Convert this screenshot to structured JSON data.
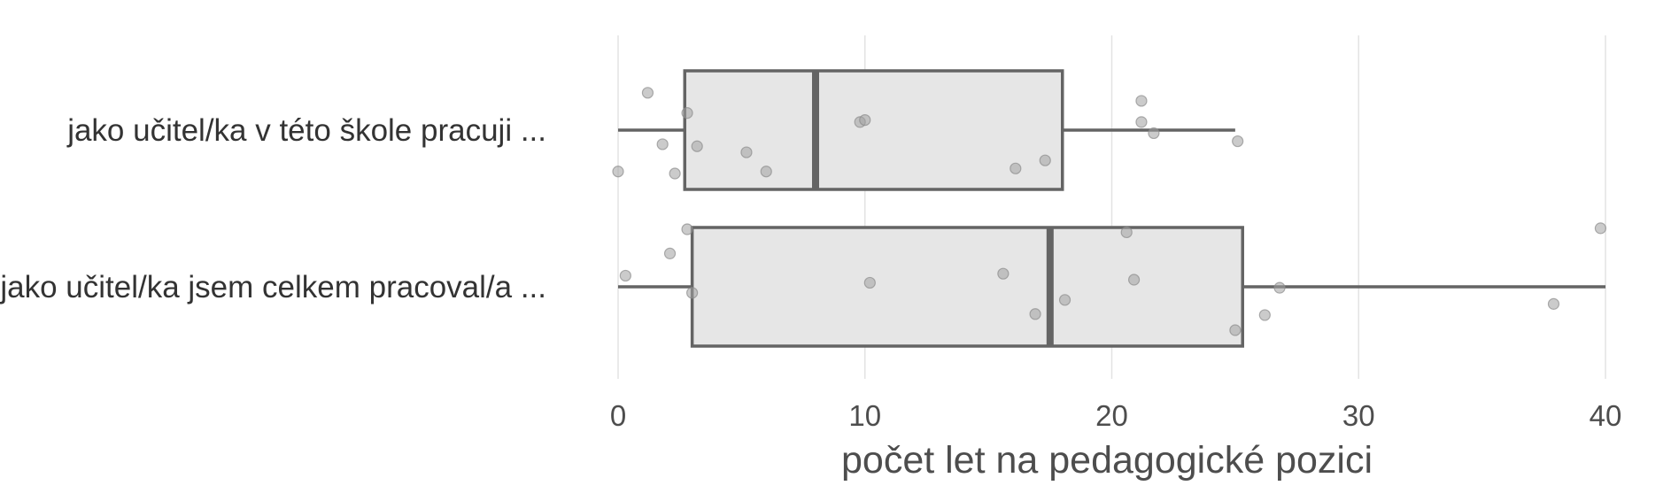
{
  "chart_data": {
    "type": "boxplot",
    "orientation": "horizontal",
    "xlabel": "počet let na pedagogické pozici",
    "xlim": [
      0,
      40
    ],
    "xticks": [
      0,
      10,
      20,
      30,
      40
    ],
    "grid": true,
    "box_fill": "#e6e6e6",
    "box_stroke": "#646464",
    "point_color": "#a0a0a0",
    "categories": [
      {
        "label": "jako učitel/ka v této škole pracuji ...",
        "whisker_low": 0,
        "q1": 2.7,
        "median": 8,
        "q3": 18,
        "whisker_high": 25,
        "points": [
          {
            "x": 1.2,
            "j": 0.74
          },
          {
            "x": 2.8,
            "j": 0.34
          },
          {
            "x": 1.8,
            "j": -0.28
          },
          {
            "x": 3.2,
            "j": -0.32
          },
          {
            "x": 5.2,
            "j": -0.44
          },
          {
            "x": 6.0,
            "j": -0.82
          },
          {
            "x": 2.3,
            "j": -0.86
          },
          {
            "x": 0.0,
            "j": -0.82
          },
          {
            "x": 9.8,
            "j": 0.16
          },
          {
            "x": 10.0,
            "j": 0.2
          },
          {
            "x": 16.1,
            "j": -0.76
          },
          {
            "x": 17.3,
            "j": -0.6
          },
          {
            "x": 21.2,
            "j": 0.58
          },
          {
            "x": 21.2,
            "j": 0.16
          },
          {
            "x": 21.7,
            "j": -0.06
          },
          {
            "x": 25.1,
            "j": -0.22
          }
        ]
      },
      {
        "label": "jako učitel/ka jsem celkem pracoval/a ...",
        "whisker_low": 0,
        "q1": 3,
        "median": 17.5,
        "q3": 25.3,
        "whisker_high": 40,
        "points": [
          {
            "x": 2.8,
            "j": 1.14
          },
          {
            "x": 2.1,
            "j": 0.66
          },
          {
            "x": 0.3,
            "j": 0.22
          },
          {
            "x": 3.0,
            "j": -0.12
          },
          {
            "x": 10.2,
            "j": 0.08
          },
          {
            "x": 15.6,
            "j": 0.26
          },
          {
            "x": 16.9,
            "j": -0.54
          },
          {
            "x": 18.1,
            "j": -0.26
          },
          {
            "x": 20.6,
            "j": 1.08
          },
          {
            "x": 20.9,
            "j": 0.14
          },
          {
            "x": 25.0,
            "j": -0.86
          },
          {
            "x": 26.2,
            "j": -0.56
          },
          {
            "x": 26.8,
            "j": -0.02
          },
          {
            "x": 37.9,
            "j": -0.34
          },
          {
            "x": 39.8,
            "j": 1.16
          }
        ]
      }
    ]
  }
}
